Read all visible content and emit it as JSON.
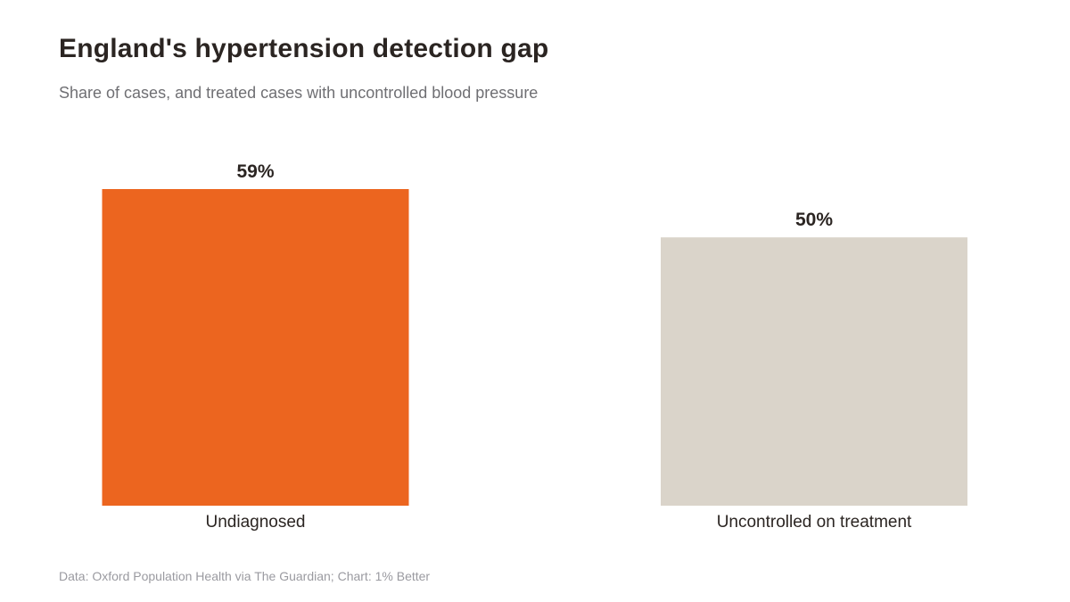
{
  "header": {
    "title": "England's hypertension detection gap",
    "subtitle": "Share of cases, and treated cases with uncontrolled blood pressure"
  },
  "footer": {
    "source": "Data: Oxford Population Health via The Guardian; Chart: 1% Better"
  },
  "chart_data": {
    "type": "bar",
    "title": "England's hypertension detection gap",
    "subtitle": "Share of cases, and treated cases with uncontrolled blood pressure",
    "categories": [
      "Undiagnosed",
      "Uncontrolled on treatment"
    ],
    "values": [
      59,
      50
    ],
    "value_labels": [
      "59%",
      "50%"
    ],
    "colors": [
      "#EC651F",
      "#DAD4CA"
    ],
    "ylim": [
      0,
      59
    ],
    "grid": false,
    "legend": "none"
  },
  "colors": {
    "text": "#2b2522",
    "subtitle": "#6f6f73",
    "source": "#9a9aa0"
  }
}
